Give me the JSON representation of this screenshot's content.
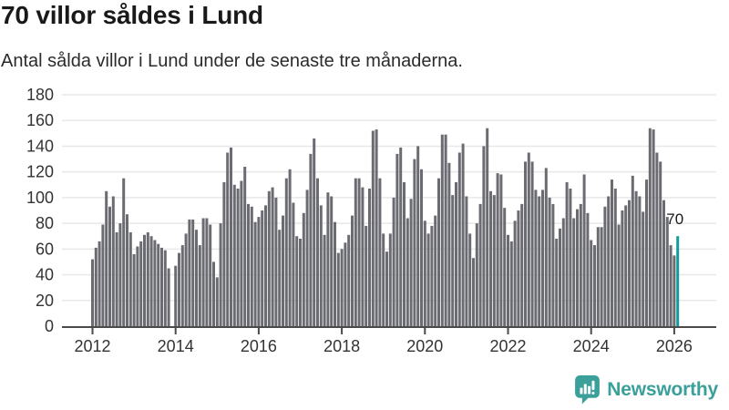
{
  "header": {
    "title": "70 villor såldes i Lund",
    "subtitle": "Antal sålda villor i Lund under de senaste tre månaderna."
  },
  "chart_data": {
    "type": "bar",
    "title": "70 villor såldes i Lund",
    "subtitle": "Antal sålda villor i Lund under de senaste tre månaderna.",
    "xlabel": "",
    "ylabel": "",
    "frequency": "monthly",
    "x_start": "2012-01",
    "x_end": "2026-02",
    "ylim": [
      0,
      180
    ],
    "yticks": [
      0,
      20,
      40,
      60,
      80,
      100,
      120,
      140,
      160,
      180
    ],
    "xtick_years": [
      2012,
      2014,
      2016,
      2018,
      2020,
      2022,
      2024,
      2026
    ],
    "grid": "horizontal",
    "legend": "none",
    "values": [
      52,
      61,
      66,
      79,
      105,
      93,
      101,
      73,
      80,
      115,
      87,
      73,
      56,
      62,
      66,
      71,
      73,
      70,
      67,
      64,
      61,
      59,
      45,
      0,
      47,
      57,
      63,
      72,
      83,
      83,
      75,
      63,
      84,
      84,
      79,
      50,
      38,
      80,
      112,
      135,
      139,
      110,
      107,
      113,
      124,
      95,
      93,
      81,
      85,
      90,
      94,
      105,
      108,
      100,
      75,
      86,
      115,
      122,
      96,
      70,
      68,
      88,
      106,
      134,
      146,
      115,
      94,
      71,
      104,
      101,
      81,
      57,
      60,
      65,
      71,
      86,
      115,
      115,
      108,
      78,
      107,
      152,
      153,
      115,
      72,
      58,
      72,
      100,
      134,
      139,
      112,
      84,
      99,
      130,
      140,
      122,
      82,
      72,
      78,
      86,
      115,
      149,
      149,
      127,
      102,
      112,
      135,
      142,
      101,
      72,
      53,
      80,
      95,
      140,
      154,
      105,
      102,
      119,
      118,
      92,
      71,
      66,
      82,
      90,
      95,
      128,
      135,
      128,
      106,
      101,
      106,
      123,
      100,
      95,
      68,
      76,
      84,
      112,
      107,
      84,
      91,
      95,
      118,
      88,
      67,
      63,
      77,
      77,
      93,
      101,
      114,
      107,
      79,
      90,
      94,
      98,
      117,
      105,
      101,
      89,
      114,
      154,
      153,
      135,
      128,
      98,
      85,
      63,
      55,
      70
    ],
    "highlight": {
      "index": 169,
      "value": 70,
      "label": "70",
      "color": "#149a9c"
    },
    "colors": {
      "bar": "#6b6b72",
      "highlight": "#149a9c",
      "grid": "#e8e8e8",
      "axis": "#4a4a4a",
      "axis_text": "#333333",
      "annotation_text": "#191919"
    }
  },
  "footer": {
    "brand": "Newsworthy",
    "brand_color": "#3aa099",
    "logo_icon": "bar-chart-speech-bubble"
  }
}
